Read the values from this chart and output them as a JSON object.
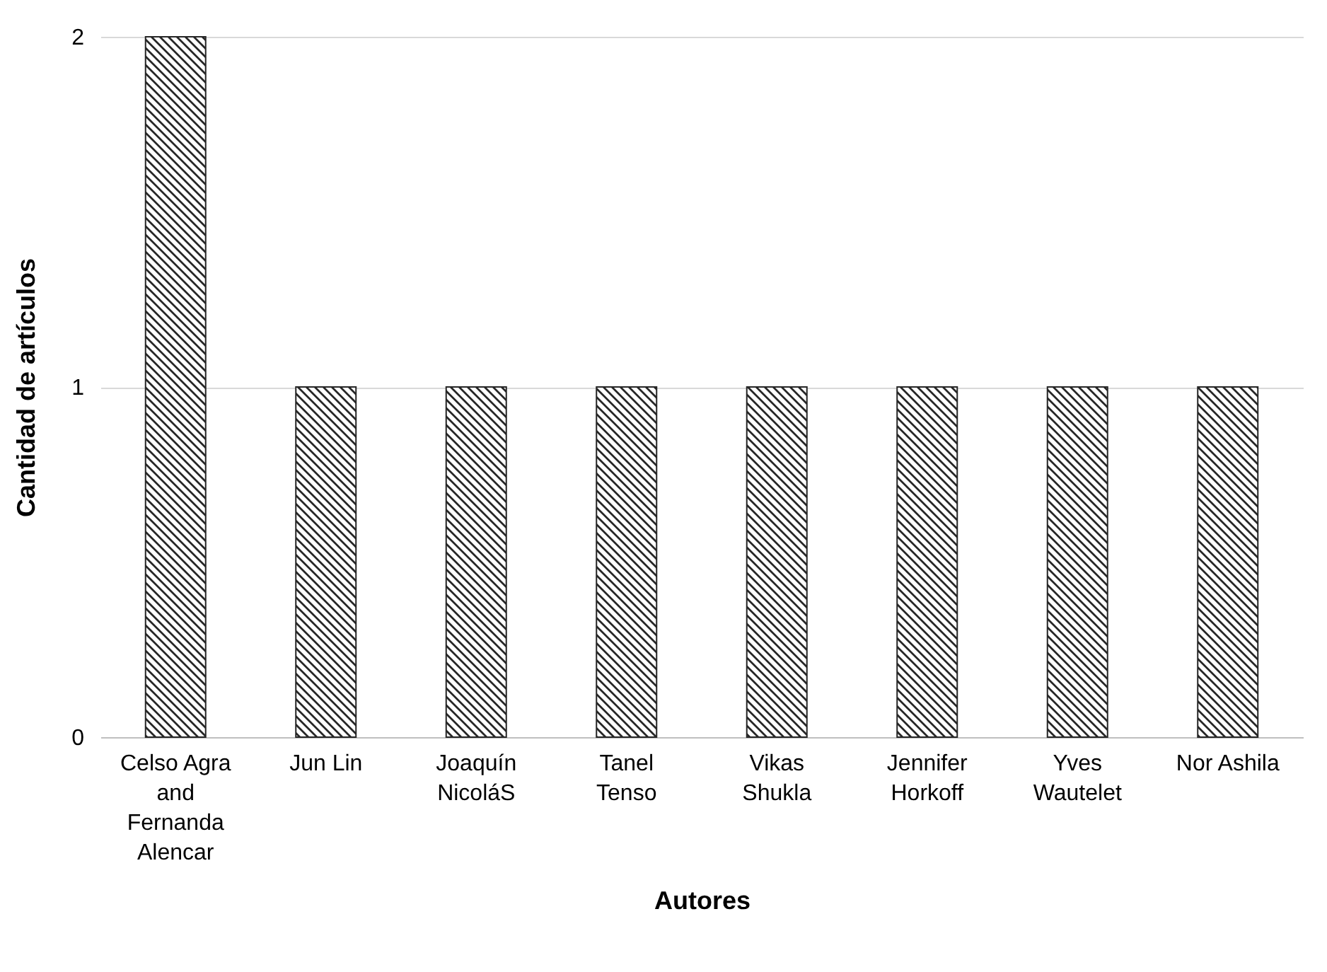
{
  "chart_data": {
    "type": "bar",
    "xlabel": "Autores",
    "ylabel": "Cantidad de artículos",
    "categories": [
      "Celso Agra and Fernanda Alencar",
      "Jun Lin",
      "Joaquín NicoláS",
      "Tanel Tenso",
      "Vikas Shukla",
      "Jennifer Horkoff",
      "Yves Wautelet",
      "Nor Ashila"
    ],
    "values": [
      2,
      1,
      1,
      1,
      1,
      1,
      1,
      1
    ],
    "color": "#262626",
    "ylim": [
      0,
      2
    ],
    "yticks": [
      0,
      1,
      2
    ],
    "grid": "y"
  }
}
